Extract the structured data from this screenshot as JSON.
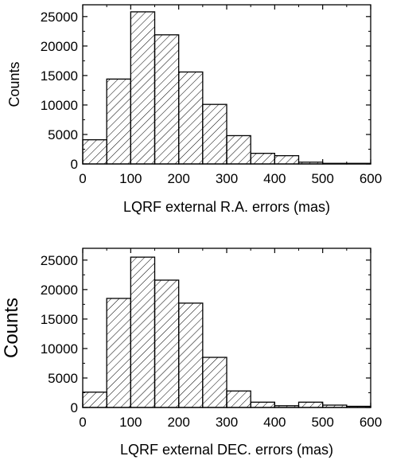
{
  "chart_data": [
    {
      "type": "bar",
      "title": "",
      "xlabel": "LQRF external R.A. errors (mas)",
      "ylabel": "Counts",
      "xlim": [
        0,
        600
      ],
      "ylim": [
        0,
        27000
      ],
      "x_ticks": [
        "0",
        "100",
        "200",
        "300",
        "400",
        "500",
        "600"
      ],
      "y_ticks": [
        "0",
        "5000",
        "10000",
        "15000",
        "20000",
        "25000"
      ],
      "bin_width": 50,
      "bins": [
        0,
        50,
        100,
        150,
        200,
        250,
        300,
        350,
        400,
        450,
        500,
        550
      ],
      "values": [
        4100,
        14400,
        25800,
        21900,
        15600,
        10100,
        4800,
        1800,
        1400,
        300,
        100,
        100
      ],
      "fill": "diagonal-hatch",
      "grid": false
    },
    {
      "type": "bar",
      "title": "",
      "xlabel": "LQRF external DEC. errors (mas)",
      "ylabel": "Counts",
      "xlim": [
        0,
        600
      ],
      "ylim": [
        0,
        27000
      ],
      "x_ticks": [
        "0",
        "100",
        "200",
        "300",
        "400",
        "500",
        "600"
      ],
      "y_ticks": [
        "0",
        "5000",
        "10000",
        "15000",
        "20000",
        "25000"
      ],
      "bin_width": 50,
      "bins": [
        0,
        50,
        100,
        150,
        200,
        250,
        300,
        350,
        400,
        450,
        500,
        550
      ],
      "values": [
        2600,
        18500,
        25500,
        21600,
        17700,
        8500,
        2800,
        900,
        300,
        900,
        400,
        200
      ],
      "fill": "diagonal-hatch",
      "grid": false
    }
  ]
}
